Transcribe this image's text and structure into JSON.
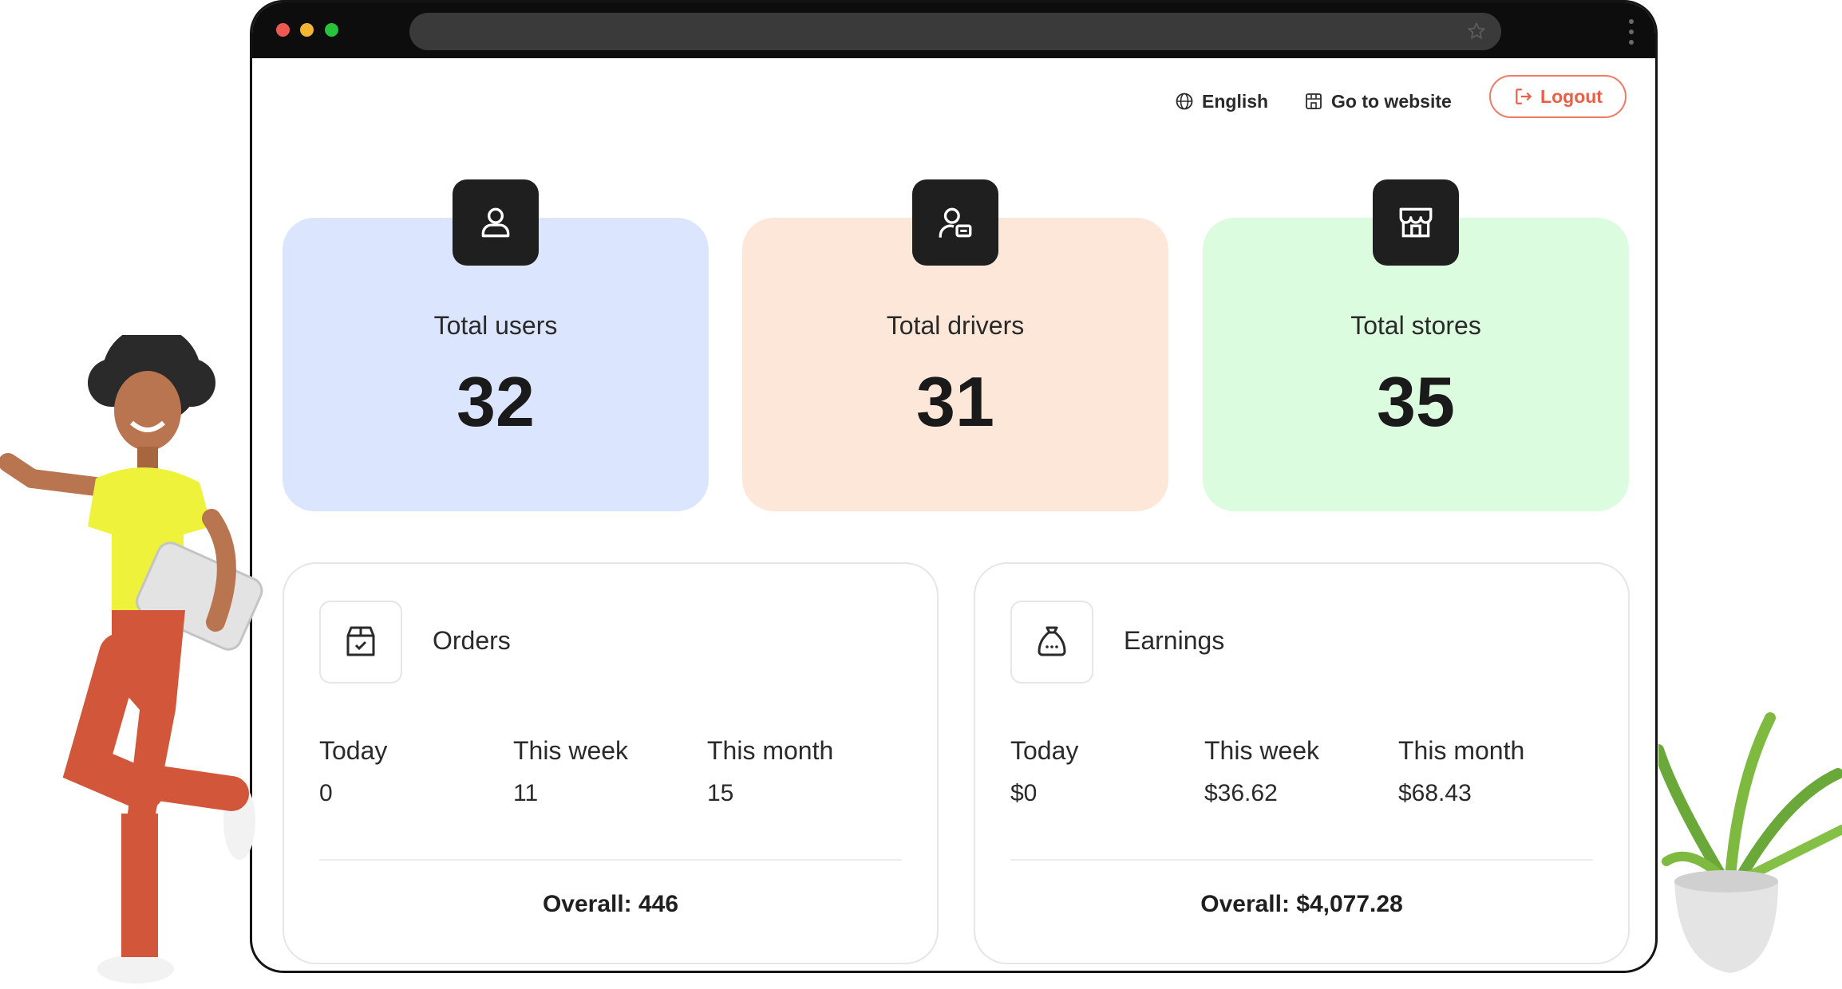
{
  "header": {
    "language": "English",
    "go_to_website": "Go to website",
    "logout": "Logout"
  },
  "stats": [
    {
      "label": "Total users",
      "value": "32",
      "icon": "user-icon"
    },
    {
      "label": "Total drivers",
      "value": "31",
      "icon": "driver-icon"
    },
    {
      "label": "Total stores",
      "value": "35",
      "icon": "store-icon"
    }
  ],
  "orders": {
    "title": "Orders",
    "icon": "package-check-icon",
    "periods": [
      {
        "label": "Today",
        "value": "0"
      },
      {
        "label": "This week",
        "value": "11"
      },
      {
        "label": "This month",
        "value": "15"
      }
    ],
    "overall": "Overall: 446"
  },
  "earnings": {
    "title": "Earnings",
    "icon": "money-bag-icon",
    "periods": [
      {
        "label": "Today",
        "value": "$0"
      },
      {
        "label": "This week",
        "value": "$36.62"
      },
      {
        "label": "This month",
        "value": "$68.43"
      }
    ],
    "overall": "Overall: $4,077.28"
  },
  "colors": {
    "users_card": "#dbe6fe",
    "drivers_card": "#fde7d9",
    "stores_card": "#dcfcdf",
    "accent_logout": "#e95f47",
    "icon_box": "#1f1f1f"
  }
}
